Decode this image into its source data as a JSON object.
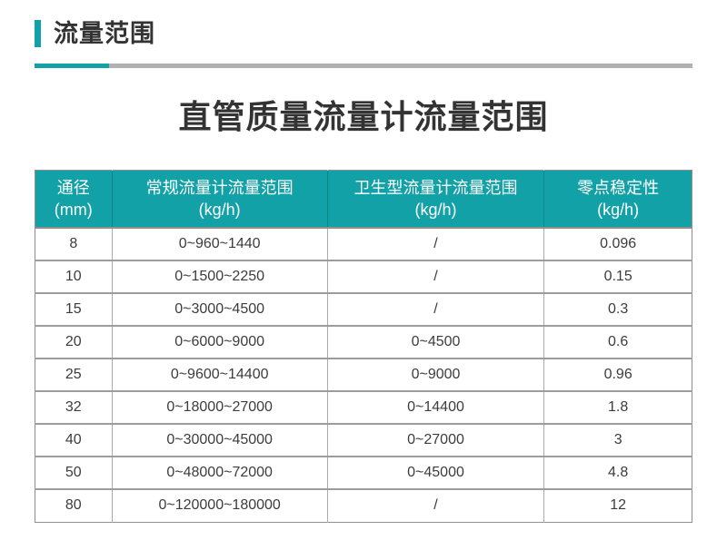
{
  "page": {
    "section_title": "流量范围",
    "main_title": "直管质量流量计流量范围"
  },
  "colors": {
    "accent_teal": "#12a1a7",
    "rule_gray": "#b1b1b1",
    "border_dark": "#8f8f8f",
    "border_light": "#ababab",
    "heading_text": "#333333",
    "body_text": "#3c3c3c",
    "header_text": "#ffffff"
  },
  "table": {
    "columns": [
      {
        "line1": "通径",
        "line2": "(mm)"
      },
      {
        "line1": "常规流量计流量范围",
        "line2": "(kg/h)"
      },
      {
        "line1": "卫生型流量计流量范围",
        "line2": "(kg/h)"
      },
      {
        "line1": "零点稳定性",
        "line2": "(kg/h)"
      }
    ],
    "rows": [
      [
        "8",
        "0~960~1440",
        "/",
        "0.096"
      ],
      [
        "10",
        "0~1500~2250",
        "/",
        "0.15"
      ],
      [
        "15",
        "0~3000~4500",
        "/",
        "0.3"
      ],
      [
        "20",
        "0~6000~9000",
        "0~4500",
        "0.6"
      ],
      [
        "25",
        "0~9600~14400",
        "0~9000",
        "0.96"
      ],
      [
        "32",
        "0~18000~27000",
        "0~14400",
        "1.8"
      ],
      [
        "40",
        "0~30000~45000",
        "0~27000",
        "3"
      ],
      [
        "50",
        "0~48000~72000",
        "0~45000",
        "4.8"
      ],
      [
        "80",
        "0~120000~180000",
        "/",
        "12"
      ]
    ]
  }
}
